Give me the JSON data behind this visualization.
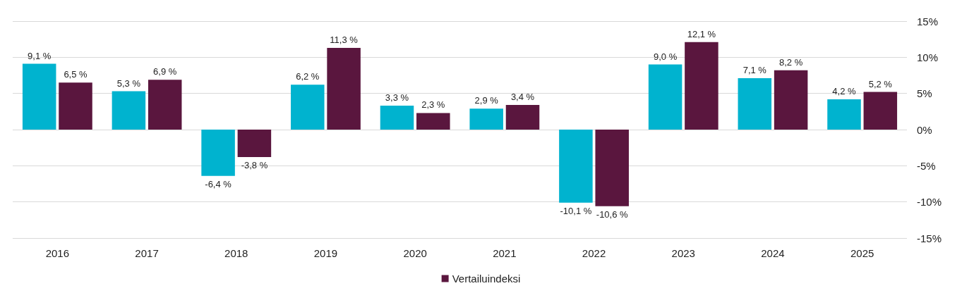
{
  "chart_data": {
    "type": "bar",
    "categories": [
      "2016",
      "2017",
      "2018",
      "2019",
      "2020",
      "2021",
      "2022",
      "2023",
      "2024",
      "2025"
    ],
    "series": [
      {
        "color": "#00b3cf",
        "values": [
          9.1,
          5.3,
          -6.4,
          6.2,
          3.3,
          2.9,
          -10.1,
          9.0,
          7.1,
          4.2
        ],
        "value_labels": [
          "9,1 %",
          "5,3 %",
          "-6,4 %",
          "6,2 %",
          "3,3 %",
          "2,9 %",
          "-10,1 %",
          "9,0 %",
          "7,1 %",
          "4,2 %"
        ]
      },
      {
        "name": "Vertailuindeksi",
        "color": "#5a163e",
        "values": [
          6.5,
          6.9,
          -3.8,
          11.3,
          2.3,
          3.4,
          -10.6,
          12.1,
          8.2,
          5.2
        ],
        "value_labels": [
          "6,5 %",
          "6,9 %",
          "-3,8 %",
          "11,3 %",
          "2,3 %",
          "3,4 %",
          "-10,6 %",
          "12,1 %",
          "8,2 %",
          "5,2 %"
        ]
      }
    ],
    "ylim": [
      -15,
      15
    ],
    "yticks": [
      {
        "value": -15,
        "label": "-15%"
      },
      {
        "value": -10,
        "label": "-10%"
      },
      {
        "value": -5,
        "label": "-5%"
      },
      {
        "value": 0,
        "label": "0%"
      },
      {
        "value": 5,
        "label": "5%"
      },
      {
        "value": 10,
        "label": "10%"
      },
      {
        "value": 15,
        "label": "15%"
      }
    ],
    "grid": "y",
    "legend": "bottom"
  }
}
